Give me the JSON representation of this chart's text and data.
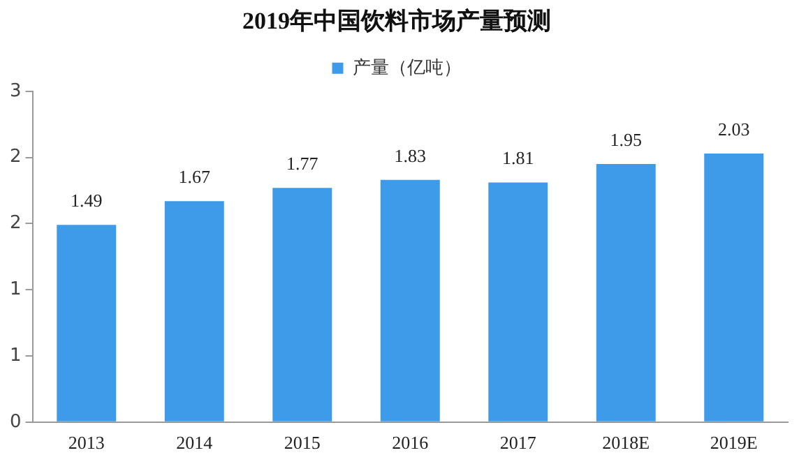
{
  "chart_data": {
    "type": "bar",
    "title": "2019年中国饮料市场产量预测",
    "categories": [
      "2013",
      "2014",
      "2015",
      "2016",
      "2017",
      "2018E",
      "2019E"
    ],
    "series": [
      {
        "name": "产量（亿吨）",
        "color": "#3d9be9",
        "values": [
          1.49,
          1.67,
          1.77,
          1.83,
          1.81,
          1.95,
          2.03
        ]
      }
    ],
    "ylim": [
      0,
      2.5
    ],
    "yticks": [
      {
        "value": 0,
        "label": "0"
      },
      {
        "value": 0.5,
        "label": "1"
      },
      {
        "value": 1,
        "label": "1"
      },
      {
        "value": 1.5,
        "label": "2"
      },
      {
        "value": 2,
        "label": "2"
      },
      {
        "value": 2.5,
        "label": "3"
      }
    ],
    "grid": false,
    "legend": "top",
    "data_labels": true
  }
}
